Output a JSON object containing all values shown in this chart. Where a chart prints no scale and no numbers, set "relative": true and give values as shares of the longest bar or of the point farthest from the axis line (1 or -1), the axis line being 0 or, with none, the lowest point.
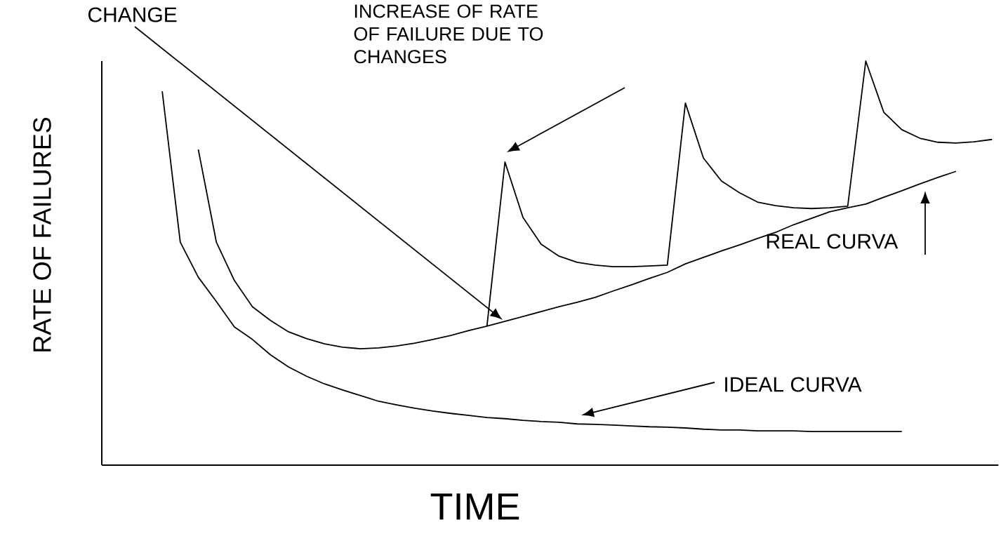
{
  "chart_data": {
    "type": "line",
    "relative": true,
    "xlabel": "TIME",
    "ylabel": "RATE OF FAILURES",
    "categories": [
      null,
      null,
      null,
      null,
      null,
      null,
      null,
      null,
      null,
      null,
      null,
      null,
      null,
      null,
      null,
      null,
      null,
      null,
      null,
      null,
      null,
      null,
      null,
      null,
      null,
      null,
      null,
      null,
      null,
      null,
      null,
      null,
      null,
      null,
      null,
      null,
      null,
      null,
      null,
      null,
      null,
      null,
      null,
      null,
      null,
      null,
      null,
      null,
      null,
      null
    ],
    "series": [
      {
        "color": "#000000",
        "values": [
          null,
          null,
          null,
          0.925,
          0.552,
          0.465,
          0.405,
          0.342,
          0.311,
          0.273,
          0.243,
          0.22,
          0.201,
          0.186,
          0.172,
          0.158,
          0.149,
          0.141,
          0.134,
          0.128,
          0.123,
          0.118,
          0.115,
          0.111,
          0.108,
          0.106,
          0.102,
          0.101,
          0.099,
          0.097,
          0.095,
          0.094,
          0.092,
          0.089,
          0.087,
          0.087,
          0.085,
          0.085,
          0.085,
          0.083,
          0.083,
          0.083,
          0.083,
          0.083,
          0.083,
          null,
          null,
          null,
          null,
          null
        ]
      },
      {
        "color": "#000000",
        "values": [
          null,
          null,
          null,
          null,
          null,
          0.781,
          0.552,
          0.457,
          0.392,
          0.358,
          0.33,
          0.313,
          0.3,
          0.292,
          0.288,
          0.29,
          0.295,
          0.302,
          0.311,
          0.321,
          0.333,
          0.344,
          0.356,
          0.368,
          0.38,
          0.392,
          0.403,
          0.415,
          0.431,
          0.446,
          0.462,
          0.477,
          0.498,
          0.514,
          0.53,
          0.545,
          0.561,
          0.576,
          0.595,
          0.611,
          0.627,
          0.637,
          0.646,
          0.663,
          0.679,
          0.696,
          0.712,
          0.727,
          null,
          null
        ]
      },
      {
        "color": "#000000",
        "values": [
          null,
          null,
          null,
          null,
          null,
          null,
          null,
          null,
          null,
          null,
          null,
          null,
          null,
          null,
          null,
          null,
          null,
          null,
          null,
          null,
          null,
          0.344,
          0.75,
          0.613,
          0.547,
          0.517,
          0.502,
          0.495,
          0.491,
          0.491,
          0.493,
          0.495,
          0.896,
          0.76,
          0.703,
          0.674,
          0.651,
          0.642,
          0.637,
          0.635,
          0.637,
          0.641,
          1.0,
          0.873,
          0.83,
          0.809,
          0.799,
          0.797,
          0.8,
          0.806
        ]
      }
    ],
    "annotations": [
      "CHANGE",
      "INCREASE OF RATE OF FAILURE DUE TO CHANGES",
      "REAL CURVA",
      "IDEAL CURVA"
    ]
  }
}
